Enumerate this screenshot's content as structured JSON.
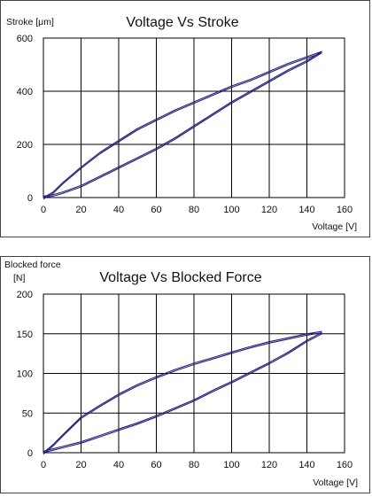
{
  "chart_data": [
    {
      "type": "line",
      "title": "Voltage Vs Stroke",
      "xlabel": "Voltage [V]",
      "ylabel": "Stroke [μm]",
      "xlim": [
        0,
        160
      ],
      "ylim": [
        0,
        600
      ],
      "xticks": [
        "0",
        "20",
        "40",
        "60",
        "80",
        "100",
        "120",
        "140",
        "160"
      ],
      "yticks": [
        "0",
        "200",
        "400",
        "600"
      ],
      "grid": true,
      "series_color": "#1f1f7a",
      "series": [
        {
          "branch": "rising",
          "x": [
            0,
            5,
            10,
            20,
            30,
            40,
            50,
            60,
            70,
            80,
            90,
            100,
            110,
            120,
            130,
            140,
            148
          ],
          "y": [
            0,
            5,
            15,
            40,
            75,
            110,
            145,
            180,
            220,
            265,
            310,
            355,
            395,
            435,
            475,
            510,
            545
          ]
        },
        {
          "branch": "falling",
          "x": [
            148,
            140,
            130,
            120,
            110,
            100,
            90,
            80,
            70,
            60,
            50,
            40,
            30,
            20,
            10,
            5,
            0
          ],
          "y": [
            550,
            530,
            505,
            475,
            445,
            420,
            390,
            360,
            330,
            295,
            260,
            215,
            170,
            115,
            55,
            20,
            0
          ]
        }
      ]
    },
    {
      "type": "line",
      "title": "Voltage Vs Blocked Force",
      "xlabel": "Voltage [V]",
      "ylabel": "Blocked force\n[N]",
      "ylabel_line1": "Blocked force",
      "ylabel_line2": "[N]",
      "xlim": [
        0,
        160
      ],
      "ylim": [
        0,
        200
      ],
      "xticks": [
        "0",
        "20",
        "40",
        "60",
        "80",
        "100",
        "120",
        "140",
        "160"
      ],
      "yticks": [
        "0",
        "50",
        "100",
        "150",
        "200"
      ],
      "grid": true,
      "series_color": "#1f1f7a",
      "series": [
        {
          "branch": "rising",
          "x": [
            0,
            5,
            10,
            20,
            30,
            40,
            50,
            60,
            70,
            80,
            90,
            100,
            110,
            120,
            130,
            140,
            148
          ],
          "y": [
            0,
            3,
            6,
            12,
            20,
            28,
            36,
            45,
            55,
            65,
            77,
            88,
            100,
            112,
            125,
            140,
            150
          ]
        },
        {
          "branch": "falling",
          "x": [
            148,
            140,
            130,
            120,
            110,
            100,
            90,
            80,
            70,
            60,
            50,
            40,
            30,
            20,
            10,
            5,
            0
          ],
          "y": [
            153,
            150,
            145,
            140,
            134,
            127,
            120,
            113,
            105,
            96,
            86,
            74,
            60,
            45,
            22,
            10,
            0
          ]
        }
      ]
    }
  ]
}
